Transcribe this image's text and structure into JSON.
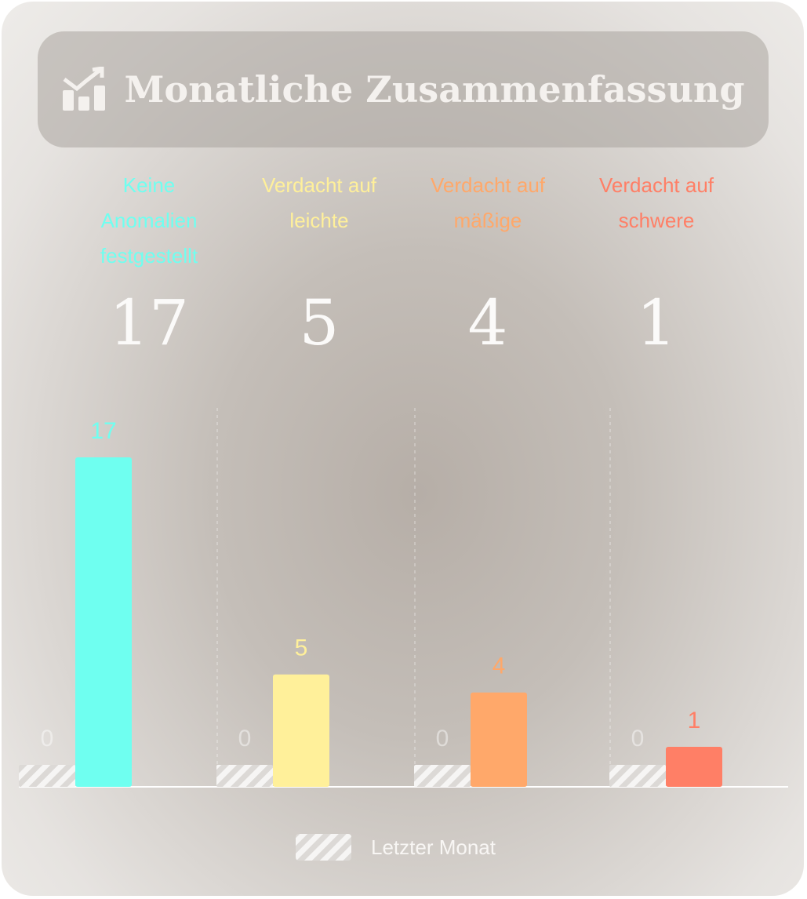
{
  "chart_data": {
    "type": "bar",
    "title": "Monatliche Zusammenfassung",
    "categories": [
      "Keine Anomalien festgestellt",
      "Verdacht auf leichte",
      "Verdacht auf mäßige",
      "Verdacht auf schwere"
    ],
    "series": [
      {
        "name": "Letzter Monat",
        "values": [
          0,
          0,
          0,
          0
        ],
        "pattern": "hatched"
      },
      {
        "values": [
          17,
          5,
          4,
          1
        ],
        "colors": [
          "#6ffff0",
          "#fff09a",
          "#ffa86a",
          "#ff7f66"
        ]
      }
    ]
  }
}
